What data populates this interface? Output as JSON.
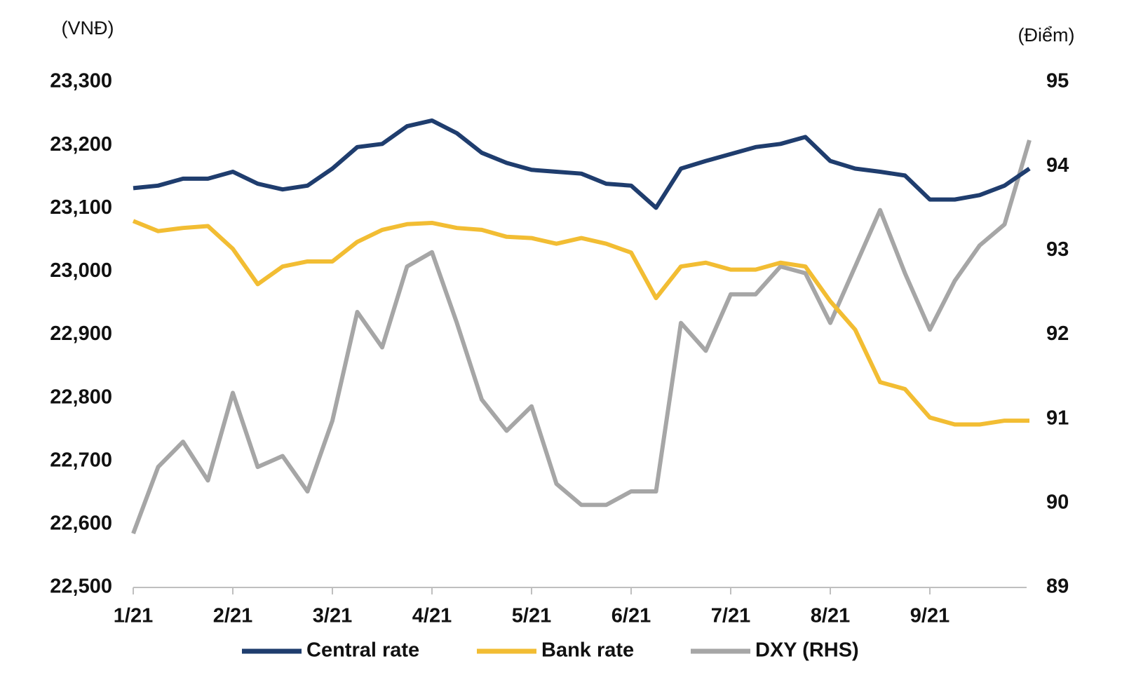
{
  "chart_data": {
    "type": "line",
    "y_label": "(VNĐ)",
    "y2_label": "(Điểm)",
    "categories": [
      "1/21",
      null,
      null,
      null,
      "2/21",
      null,
      null,
      null,
      "3/21",
      null,
      null,
      null,
      "4/21",
      null,
      null,
      null,
      "5/21",
      null,
      null,
      null,
      "6/21",
      null,
      null,
      null,
      "7/21",
      null,
      null,
      null,
      "8/21",
      null,
      null,
      null,
      "9/21",
      null,
      null,
      null,
      null
    ],
    "ylim": [
      22500,
      23300
    ],
    "yticks": [
      {
        "value": 22500,
        "label": "22,500"
      },
      {
        "value": 22600,
        "label": "22,600"
      },
      {
        "value": 22700,
        "label": "22,700"
      },
      {
        "value": 22800,
        "label": "22,800"
      },
      {
        "value": 22900,
        "label": "22,900"
      },
      {
        "value": 23000,
        "label": "23,000"
      },
      {
        "value": 23100,
        "label": "23,100"
      },
      {
        "value": 23200,
        "label": "23,200"
      },
      {
        "value": 23300,
        "label": "23,300"
      }
    ],
    "y2lim": [
      89,
      95
    ],
    "y2ticks": [
      89,
      90,
      91,
      92,
      93,
      94,
      95
    ],
    "series": [
      {
        "name": "Central rate",
        "color": "#1f3d6e",
        "values": [
          23132,
          23136,
          23147,
          23147,
          23158,
          23139,
          23130,
          23136,
          23163,
          23197,
          23202,
          23230,
          23239,
          23219,
          23188,
          23172,
          23161,
          23158,
          23155,
          23139,
          23136,
          23101,
          23163,
          23175,
          23186,
          23197,
          23202,
          23213,
          23175,
          23163,
          23158,
          23152,
          23114,
          23114,
          23121,
          23136,
          23163
        ]
      },
      {
        "name": "Bank rate",
        "color": "#f2bd33",
        "values": [
          23080,
          23064,
          23069,
          23072,
          23036,
          22980,
          23008,
          23016,
          23016,
          23047,
          23066,
          23075,
          23077,
          23069,
          23066,
          23055,
          23053,
          23044,
          23053,
          23044,
          23030,
          22958,
          23008,
          23014,
          23003,
          23003,
          23014,
          23008,
          22953,
          22908,
          22825,
          22814,
          22769,
          22758,
          22758,
          22764,
          22764
        ]
      },
      {
        "name": "DXY (RHS)",
        "color": "#a6a6a6",
        "axis": "y2",
        "values": [
          89.64,
          90.43,
          90.73,
          90.27,
          91.31,
          90.43,
          90.56,
          90.14,
          90.98,
          92.27,
          91.85,
          92.81,
          92.98,
          92.14,
          91.23,
          90.86,
          91.15,
          90.23,
          89.98,
          89.98,
          90.14,
          90.14,
          92.14,
          91.81,
          92.48,
          92.48,
          92.81,
          92.73,
          92.14,
          92.81,
          93.48,
          92.73,
          92.06,
          92.64,
          93.06,
          93.31,
          94.31
        ]
      }
    ]
  }
}
